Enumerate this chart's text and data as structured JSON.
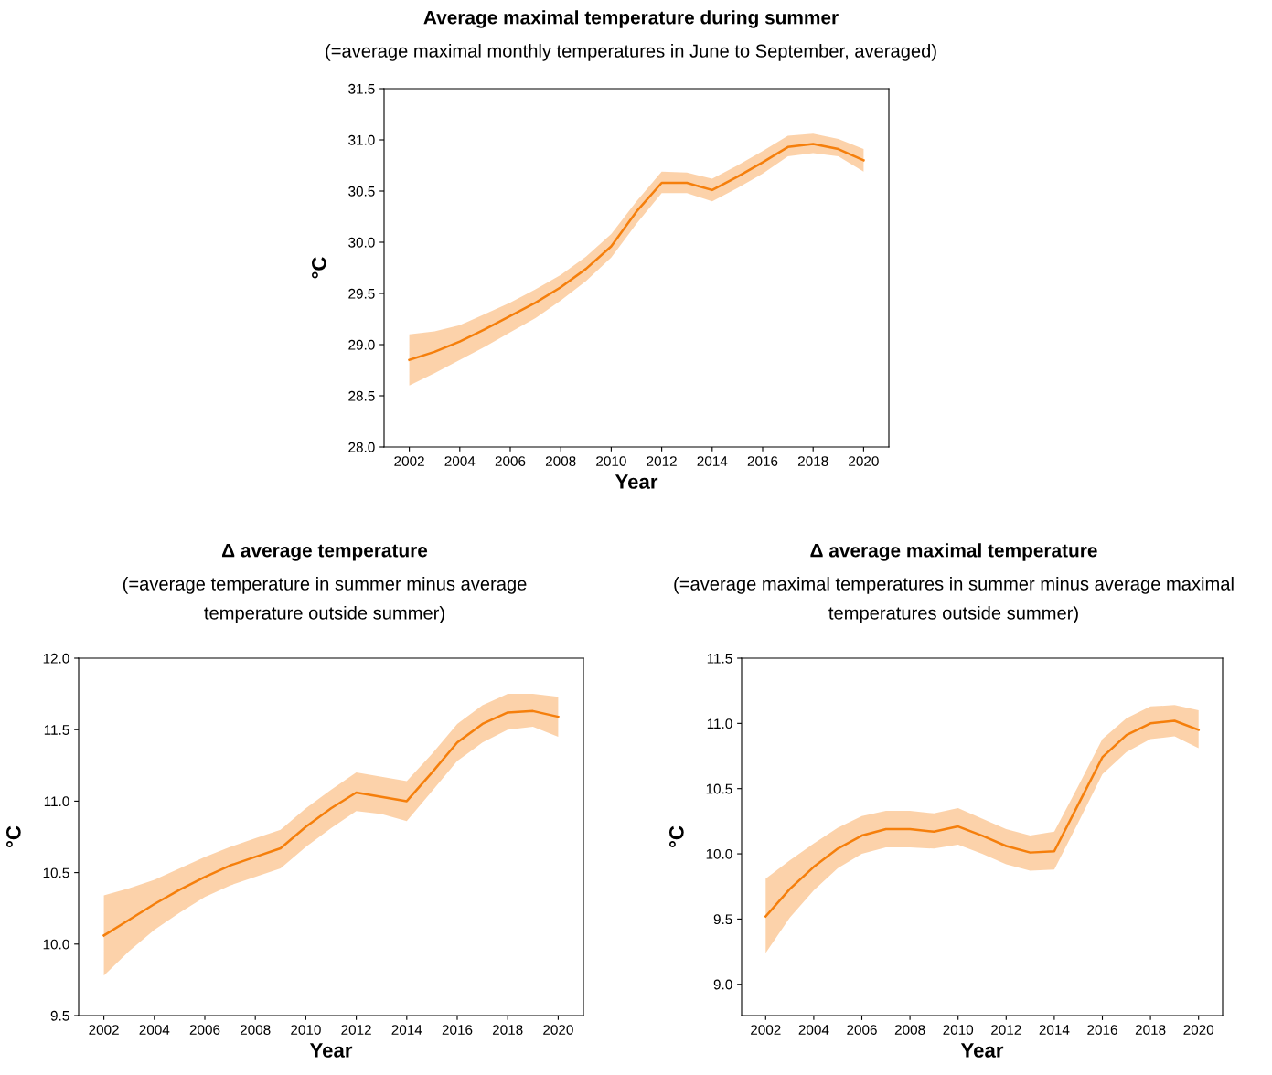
{
  "chart_data": [
    {
      "type": "line",
      "title": "Average maximal temperature during summer",
      "subtitle": "(=average maximal monthly temperatures in June to September, averaged)",
      "xlabel": "Year",
      "ylabel": "°C",
      "x": [
        2002,
        2003,
        2004,
        2005,
        2006,
        2007,
        2008,
        2009,
        2010,
        2011,
        2012,
        2013,
        2014,
        2015,
        2016,
        2017,
        2018,
        2019,
        2020
      ],
      "series": [
        {
          "color": "#f57f0c",
          "values": [
            28.85,
            28.93,
            29.03,
            29.15,
            29.28,
            29.41,
            29.56,
            29.74,
            29.96,
            30.3,
            30.58,
            30.58,
            30.51,
            30.64,
            30.78,
            30.93,
            30.96,
            30.91,
            30.8
          ],
          "lower": [
            28.6,
            28.72,
            28.85,
            28.98,
            29.12,
            29.26,
            29.43,
            29.62,
            29.85,
            30.18,
            30.48,
            30.48,
            30.4,
            30.53,
            30.67,
            30.84,
            30.87,
            30.84,
            30.69
          ],
          "upper": [
            29.1,
            29.13,
            29.19,
            29.3,
            29.41,
            29.54,
            29.68,
            29.86,
            30.08,
            30.4,
            30.69,
            30.68,
            30.62,
            30.75,
            30.89,
            31.04,
            31.06,
            31.01,
            30.91
          ]
        }
      ],
      "xlim": [
        2001,
        2021
      ],
      "ylim": [
        28.0,
        31.5
      ],
      "xticks": [
        2002,
        2004,
        2006,
        2008,
        2010,
        2012,
        2014,
        2016,
        2018,
        2020
      ],
      "yticks": [
        {
          "value": 28.0,
          "label": "28.0"
        },
        {
          "value": 28.5,
          "label": "28.5"
        },
        {
          "value": 29.0,
          "label": "29.0"
        },
        {
          "value": 29.5,
          "label": "29.5"
        },
        {
          "value": 30.0,
          "label": "30.0"
        },
        {
          "value": 30.5,
          "label": "30.5"
        },
        {
          "value": 31.0,
          "label": "31.0"
        },
        {
          "value": 31.5,
          "label": "31.5"
        }
      ]
    },
    {
      "type": "line",
      "title": "Δ average temperature",
      "subtitle": "(=average temperature in summer minus average\ntemperature outside summer)",
      "xlabel": "Year",
      "ylabel": "°C",
      "x": [
        2002,
        2003,
        2004,
        2005,
        2006,
        2007,
        2008,
        2009,
        2010,
        2011,
        2012,
        2013,
        2014,
        2015,
        2016,
        2017,
        2018,
        2019,
        2020
      ],
      "series": [
        {
          "color": "#f57f0c",
          "values": [
            10.06,
            10.17,
            10.28,
            10.38,
            10.47,
            10.55,
            10.61,
            10.67,
            10.82,
            10.95,
            11.06,
            11.03,
            11.0,
            11.2,
            11.41,
            11.54,
            11.62,
            11.63,
            11.59
          ],
          "lower": [
            9.78,
            9.95,
            10.1,
            10.22,
            10.33,
            10.41,
            10.47,
            10.53,
            10.68,
            10.81,
            10.93,
            10.91,
            10.86,
            11.07,
            11.28,
            11.41,
            11.5,
            11.52,
            11.45
          ],
          "upper": [
            10.34,
            10.39,
            10.45,
            10.53,
            10.61,
            10.68,
            10.74,
            10.8,
            10.95,
            11.08,
            11.2,
            11.17,
            11.14,
            11.33,
            11.54,
            11.67,
            11.75,
            11.75,
            11.73
          ]
        }
      ],
      "xlim": [
        2001,
        2021
      ],
      "ylim": [
        9.5,
        12.0
      ],
      "xticks": [
        2002,
        2004,
        2006,
        2008,
        2010,
        2012,
        2014,
        2016,
        2018,
        2020
      ],
      "yticks": [
        {
          "value": 9.5,
          "label": "9.5"
        },
        {
          "value": 10.0,
          "label": "10.0"
        },
        {
          "value": 10.5,
          "label": "10.5"
        },
        {
          "value": 11.0,
          "label": "11.0"
        },
        {
          "value": 11.5,
          "label": "11.5"
        },
        {
          "value": 12.0,
          "label": "12.0"
        }
      ]
    },
    {
      "type": "line",
      "title": "Δ average maximal temperature",
      "subtitle": "(=average maximal temperatures in summer minus average maximal\ntemperatures outside summer)",
      "xlabel": "Year",
      "ylabel": "°C",
      "x": [
        2002,
        2003,
        2004,
        2005,
        2006,
        2007,
        2008,
        2009,
        2010,
        2011,
        2012,
        2013,
        2014,
        2015,
        2016,
        2017,
        2018,
        2019,
        2020
      ],
      "series": [
        {
          "color": "#f57f0c",
          "values": [
            9.52,
            9.73,
            9.9,
            10.04,
            10.14,
            10.19,
            10.19,
            10.17,
            10.21,
            10.14,
            10.06,
            10.01,
            10.02,
            10.38,
            10.74,
            10.91,
            11.0,
            11.02,
            10.95
          ],
          "lower": [
            9.24,
            9.51,
            9.72,
            9.89,
            10.0,
            10.05,
            10.05,
            10.04,
            10.07,
            10.0,
            9.92,
            9.87,
            9.88,
            10.24,
            10.61,
            10.78,
            10.88,
            10.9,
            10.81
          ],
          "upper": [
            9.81,
            9.95,
            10.08,
            10.2,
            10.29,
            10.33,
            10.33,
            10.31,
            10.35,
            10.27,
            10.19,
            10.14,
            10.17,
            10.52,
            10.88,
            11.04,
            11.13,
            11.14,
            11.1
          ]
        }
      ],
      "xlim": [
        2001,
        2021
      ],
      "ylim": [
        8.76,
        11.5
      ],
      "xticks": [
        2002,
        2004,
        2006,
        2008,
        2010,
        2012,
        2014,
        2016,
        2018,
        2020
      ],
      "yticks": [
        {
          "value": 9.0,
          "label": "9.0"
        },
        {
          "value": 9.5,
          "label": "9.5"
        },
        {
          "value": 10.0,
          "label": "10.0"
        },
        {
          "value": 10.5,
          "label": "10.5"
        },
        {
          "value": 11.0,
          "label": "11.0"
        },
        {
          "value": 11.5,
          "label": "11.5"
        }
      ]
    }
  ]
}
